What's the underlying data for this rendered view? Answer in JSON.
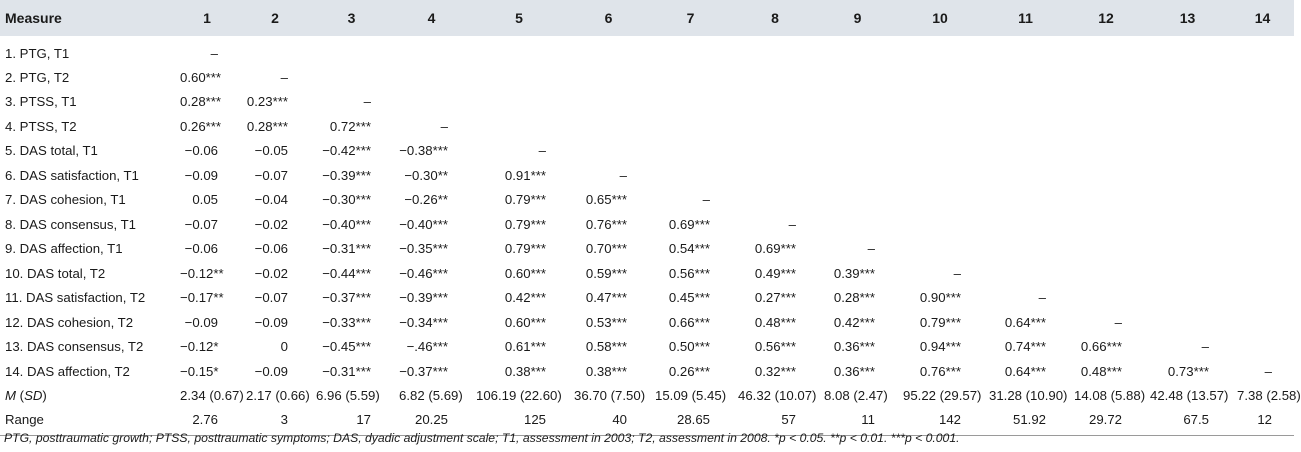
{
  "columns": [
    "Measure",
    "1",
    "2",
    "3",
    "4",
    "5",
    "6",
    "7",
    "8",
    "9",
    "10",
    "11",
    "12",
    "13",
    "14"
  ],
  "rows": [
    [
      "1. PTG, T1",
      "–",
      "",
      "",
      "",
      "",
      "",
      "",
      "",
      "",
      "",
      "",
      "",
      "",
      ""
    ],
    [
      "2. PTG, T2",
      "0.60***",
      "–",
      "",
      "",
      "",
      "",
      "",
      "",
      "",
      "",
      "",
      "",
      "",
      ""
    ],
    [
      "3. PTSS, T1",
      "0.28***",
      "0.23***",
      "–",
      "",
      "",
      "",
      "",
      "",
      "",
      "",
      "",
      "",
      "",
      ""
    ],
    [
      "4. PTSS, T2",
      "0.26***",
      "0.28***",
      "0.72***",
      "–",
      "",
      "",
      "",
      "",
      "",
      "",
      "",
      "",
      "",
      ""
    ],
    [
      "5. DAS total, T1",
      "−0.06",
      "−0.05",
      "−0.42***",
      "−0.38***",
      "–",
      "",
      "",
      "",
      "",
      "",
      "",
      "",
      "",
      ""
    ],
    [
      "6. DAS satisfaction, T1",
      "−0.09",
      "−0.07",
      "−0.39***",
      "−0.30**",
      "0.91***",
      "–",
      "",
      "",
      "",
      "",
      "",
      "",
      "",
      ""
    ],
    [
      "7. DAS cohesion, T1",
      "0.05",
      "−0.04",
      "−0.30***",
      "−0.26**",
      "0.79***",
      "0.65***",
      "–",
      "",
      "",
      "",
      "",
      "",
      "",
      ""
    ],
    [
      "8. DAS consensus, T1",
      "−0.07",
      "−0.02",
      "−0.40***",
      "−0.40***",
      "0.79***",
      "0.76***",
      "0.69***",
      "–",
      "",
      "",
      "",
      "",
      "",
      ""
    ],
    [
      "9. DAS affection, T1",
      "−0.06",
      "−0.06",
      "−0.31***",
      "−0.35***",
      "0.79***",
      "0.70***",
      "0.54***",
      "0.69***",
      "–",
      "",
      "",
      "",
      "",
      ""
    ],
    [
      "10. DAS total, T2",
      "−0.12**",
      "−0.02",
      "−0.44***",
      "−0.46***",
      "0.60***",
      "0.59***",
      "0.56***",
      "0.49***",
      "0.39***",
      "–",
      "",
      "",
      "",
      ""
    ],
    [
      "11. DAS satisfaction, T2",
      "−0.17**",
      "−0.07",
      "−0.37***",
      "−0.39***",
      "0.42***",
      "0.47***",
      "0.45***",
      "0.27***",
      "0.28***",
      "0.90***",
      "–",
      "",
      "",
      ""
    ],
    [
      "12. DAS cohesion, T2",
      "−0.09",
      "−0.09",
      "−0.33***",
      "−0.34***",
      "0.60***",
      "0.53***",
      "0.66***",
      "0.48***",
      "0.42***",
      "0.79***",
      "0.64***",
      "–",
      "",
      ""
    ],
    [
      "13. DAS consensus, T2",
      "−0.12*",
      "0",
      "−0.45***",
      "−.46***",
      "0.61***",
      "0.58***",
      "0.50***",
      "0.56***",
      "0.36***",
      "0.94***",
      "0.74***",
      "0.66***",
      "–",
      ""
    ],
    [
      "14. DAS affection, T2",
      "−0.15*",
      "−0.09",
      "−0.31***",
      "−0.37***",
      "0.38***",
      "0.38***",
      "0.26***",
      "0.32***",
      "0.36***",
      "0.76***",
      "0.64***",
      "0.48***",
      "0.73***",
      "–"
    ],
    [
      "M (SD)",
      "2.34 (0.67)",
      "2.17 (0.66)",
      "6.96 (5.59)",
      "6.82 (5.69)",
      "106.19 (22.60)",
      "36.70 (7.50)",
      "15.09 (5.45)",
      "46.32 (10.07)",
      "8.08 (2.47)",
      "95.22 (29.57)",
      "31.28 (10.90)",
      "14.08 (5.88)",
      "42.48 (13.57)",
      "7.38 (2.58)"
    ],
    [
      "Range",
      "2.76",
      "3",
      "17",
      "20.25",
      "125",
      "40",
      "28.65",
      "57",
      "11",
      "142",
      "51.92",
      "29.72",
      "67.5",
      "12"
    ]
  ],
  "footnote": "PTG, posttraumatic growth; PTSS, posttraumatic symptoms; DAS, dyadic adjustment scale; T1, assessment in 2003; T2, assessment in 2008. *p < 0.05. **p < 0.01. ***p < 0.001."
}
